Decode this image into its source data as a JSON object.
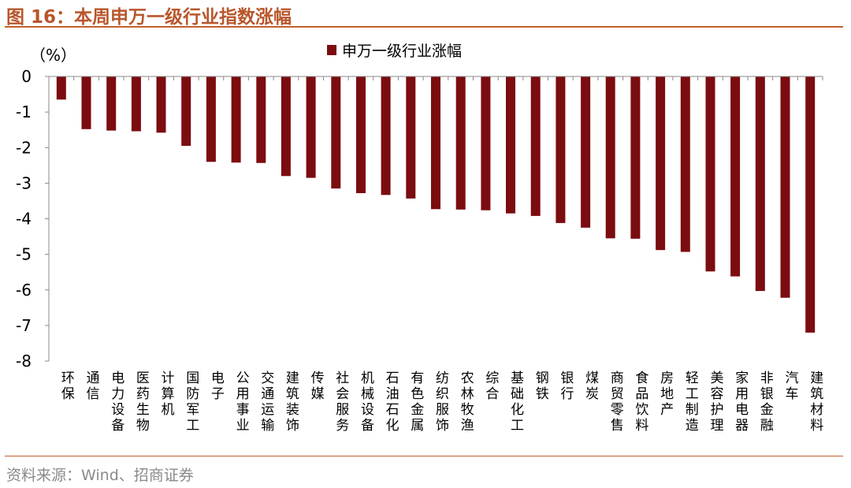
{
  "header": {
    "title": "图 16：本周申万一级行业指数涨幅"
  },
  "footer": {
    "source": "资料来源：Wind、招商证券"
  },
  "chart_data": {
    "type": "bar",
    "unit_label": "（%）",
    "legend": "申万一级行业涨幅",
    "legend_position": "top-center",
    "grid": false,
    "bar_color": "#7B0C10",
    "ylim": [
      -8,
      0
    ],
    "yticks": [
      "0",
      "-1",
      "-2",
      "-3",
      "-4",
      "-5",
      "-6",
      "-7",
      "-8"
    ],
    "categories": [
      "环保",
      "通信",
      "电力设备",
      "医药生物",
      "计算机",
      "国防军工",
      "电子",
      "公用事业",
      "交通运输",
      "建筑装饰",
      "传媒",
      "社会服务",
      "机械设备",
      "石油石化",
      "有色金属",
      "纺织服饰",
      "农林牧渔",
      "综合",
      "基础化工",
      "钢铁",
      "银行",
      "煤炭",
      "商贸零售",
      "食品饮料",
      "房地产",
      "轻工制造",
      "美容护理",
      "家用电器",
      "非银金融",
      "汽车",
      "建筑材料"
    ],
    "values": [
      -0.65,
      -1.48,
      -1.52,
      -1.54,
      -1.58,
      -1.95,
      -2.4,
      -2.42,
      -2.43,
      -2.8,
      -2.85,
      -3.15,
      -3.28,
      -3.33,
      -3.43,
      -3.73,
      -3.74,
      -3.76,
      -3.85,
      -3.92,
      -4.12,
      -4.25,
      -4.55,
      -4.56,
      -4.88,
      -4.93,
      -5.48,
      -5.62,
      -6.03,
      -6.22,
      -7.2
    ]
  }
}
